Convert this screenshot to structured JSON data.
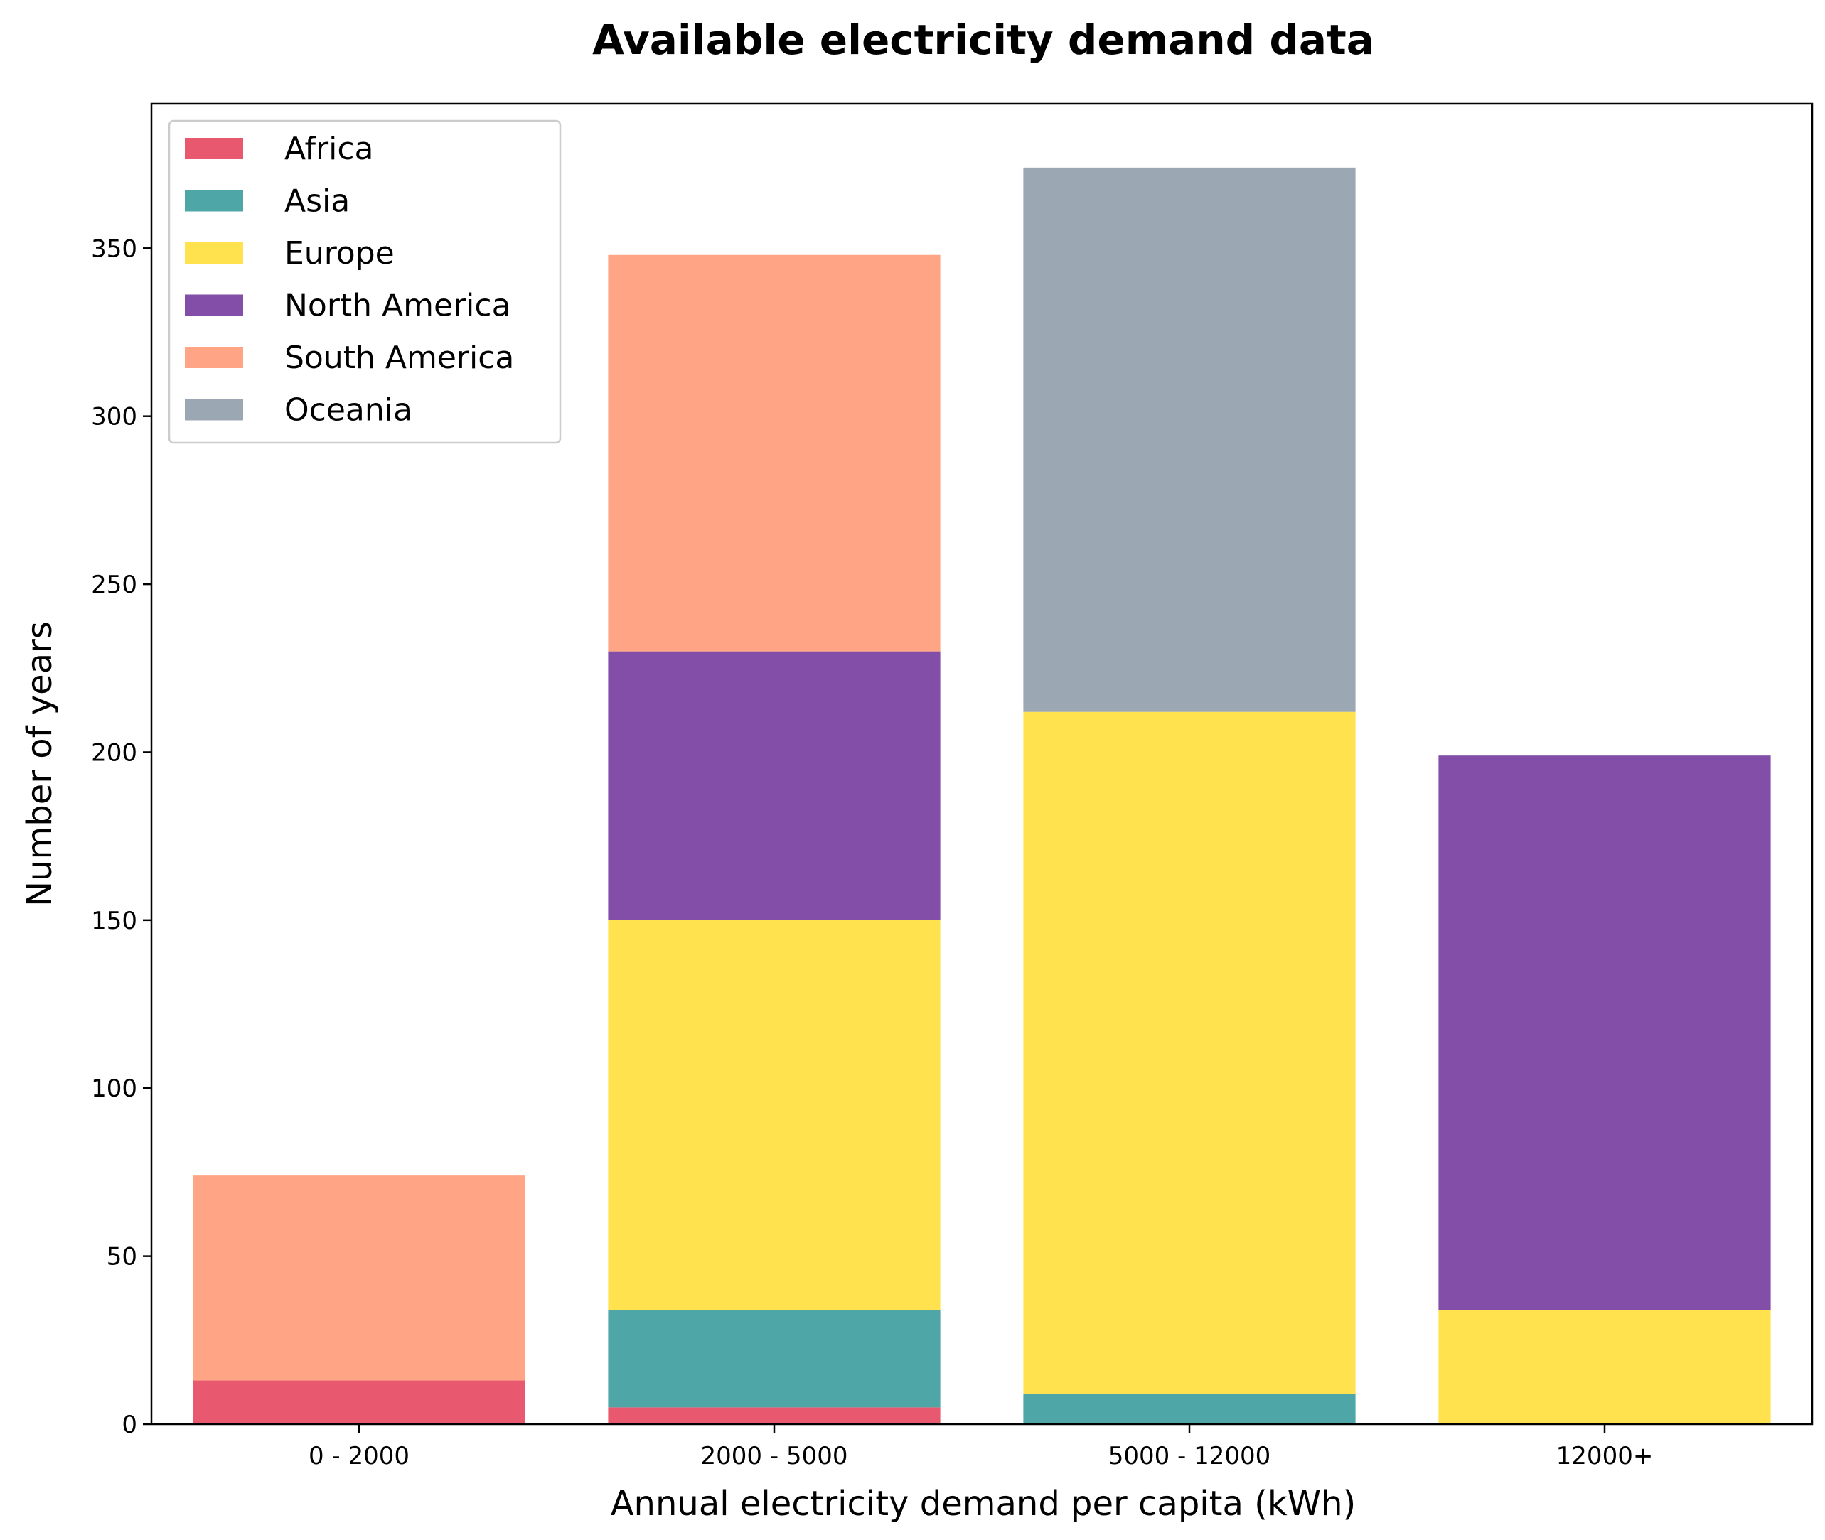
{
  "chart_data": {
    "type": "bar",
    "stacked": true,
    "title": "Available electricity demand data",
    "xlabel": "Annual electricity demand per capita (kWh)",
    "ylabel": "Number of years",
    "categories": [
      "0 - 2000",
      "2000 - 5000",
      "5000 - 12000",
      "12000+"
    ],
    "ylim": [
      0,
      393
    ],
    "yticks": [
      0,
      50,
      100,
      150,
      200,
      250,
      300,
      350
    ],
    "grid": false,
    "legend_position": "top-left",
    "series": [
      {
        "name": "Africa",
        "color": "#e8596f",
        "values": [
          13,
          5,
          0,
          0
        ]
      },
      {
        "name": "Asia",
        "color": "#4fa6a6",
        "values": [
          0,
          29,
          9,
          0
        ]
      },
      {
        "name": "Europe",
        "color": "#ffe24d",
        "values": [
          0,
          116,
          203,
          34
        ]
      },
      {
        "name": "North America",
        "color": "#824ea7",
        "values": [
          0,
          80,
          0,
          165
        ]
      },
      {
        "name": "South America",
        "color": "#ffa586",
        "values": [
          61,
          118,
          0,
          0
        ]
      },
      {
        "name": "Oceania",
        "color": "#9ba7b2",
        "values": [
          0,
          0,
          162,
          0
        ]
      }
    ]
  }
}
